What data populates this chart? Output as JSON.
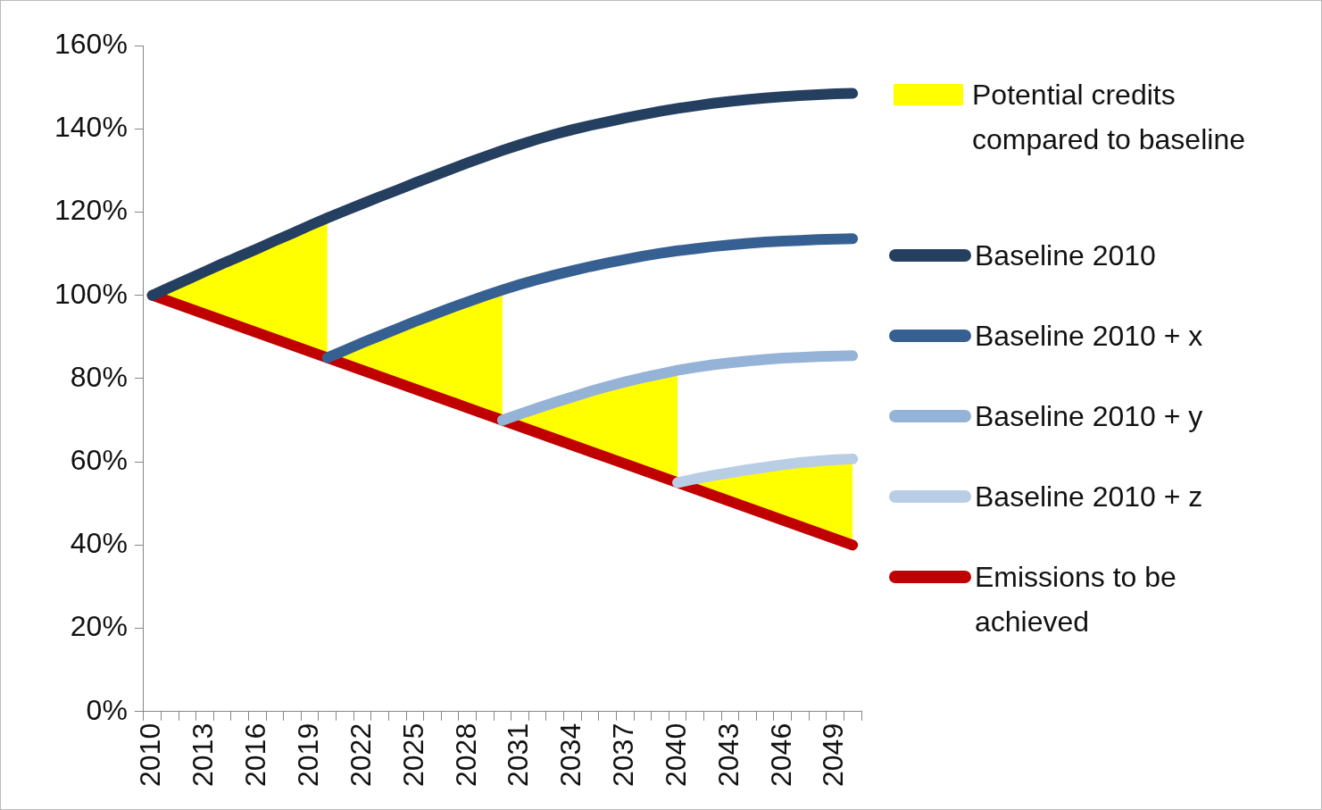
{
  "chart_data": {
    "type": "line",
    "categories": [
      "2010",
      null,
      null,
      "2013",
      null,
      null,
      "2016",
      null,
      null,
      "2019",
      null,
      null,
      "2022",
      null,
      null,
      "2025",
      null,
      null,
      "2028",
      null,
      null,
      "2031",
      null,
      null,
      "2034",
      null,
      null,
      "2037",
      null,
      null,
      "2040",
      null,
      null,
      "2043",
      null,
      null,
      "2046",
      null,
      null,
      "2049",
      null
    ],
    "series": [
      {
        "name": "Potential credits compared to baseline",
        "type": "area",
        "color": "#ffff00",
        "values": [
          100,
          101.9,
          103.8,
          105.7,
          107.6,
          109.4,
          111.2,
          113.1,
          114.9,
          116.8,
          118.6,
          null,
          null,
          null,
          null,
          null,
          null,
          null,
          null,
          null,
          null,
          null,
          null,
          null,
          null,
          null,
          null,
          null,
          null,
          null,
          null,
          null,
          null,
          null,
          null,
          null,
          null,
          null,
          null,
          null,
          null
        ]
      },
      {
        "type": "area",
        "color": "#ffff00",
        "values": [
          null,
          null,
          null,
          null,
          null,
          null,
          null,
          null,
          null,
          null,
          85,
          86.8,
          88.6,
          90.3,
          92,
          93.7,
          95.3,
          96.9,
          98.4,
          99.9,
          101.3,
          null,
          null,
          null,
          null,
          null,
          null,
          null,
          null,
          null,
          null,
          null,
          null,
          null,
          null,
          null,
          null,
          null,
          null,
          null,
          null
        ]
      },
      {
        "type": "area",
        "color": "#ffff00",
        "values": [
          null,
          null,
          null,
          null,
          null,
          null,
          null,
          null,
          null,
          null,
          null,
          null,
          null,
          null,
          null,
          null,
          null,
          null,
          null,
          null,
          70,
          71.5,
          72.9,
          74.3,
          75.6,
          76.9,
          78.1,
          79.2,
          80.2,
          81.1,
          82,
          null,
          null,
          null,
          null,
          null,
          null,
          null,
          null,
          null,
          null
        ]
      },
      {
        "type": "area",
        "color": "#ffff00",
        "values": [
          null,
          null,
          null,
          null,
          null,
          null,
          null,
          null,
          null,
          null,
          null,
          null,
          null,
          null,
          null,
          null,
          null,
          null,
          null,
          null,
          null,
          null,
          null,
          null,
          null,
          null,
          null,
          null,
          null,
          null,
          55,
          55.9,
          56.7,
          57.4,
          58.1,
          58.7,
          59.3,
          59.8,
          60.2,
          60.5,
          60.7
        ]
      },
      {
        "name": "Baseline 2010",
        "color": "#243f60",
        "values": [
          100,
          101.9,
          103.8,
          105.7,
          107.6,
          109.4,
          111.2,
          113.1,
          114.9,
          116.8,
          118.6,
          120.3,
          122,
          123.7,
          125.3,
          127,
          128.6,
          130.2,
          131.8,
          133.3,
          134.8,
          136.2,
          137.5,
          138.7,
          139.8,
          140.8,
          141.7,
          142.6,
          143.4,
          144.2,
          144.9,
          145.5,
          146.1,
          146.6,
          147,
          147.4,
          147.7,
          148,
          148.2,
          148.4,
          148.5
        ]
      },
      {
        "name": "Baseline 2010 + x",
        "color": "#376092",
        "values": [
          null,
          null,
          null,
          null,
          null,
          null,
          null,
          null,
          null,
          null,
          85,
          86.8,
          88.6,
          90.3,
          92,
          93.7,
          95.3,
          96.9,
          98.4,
          99.9,
          101.3,
          102.6,
          103.8,
          104.9,
          105.9,
          106.9,
          107.8,
          108.6,
          109.4,
          110.1,
          110.7,
          111.2,
          111.7,
          112.1,
          112.5,
          112.8,
          113,
          113.2,
          113.4,
          113.5,
          113.6
        ]
      },
      {
        "name": "Baseline 2010 + y",
        "color": "#95b3d7",
        "values": [
          null,
          null,
          null,
          null,
          null,
          null,
          null,
          null,
          null,
          null,
          null,
          null,
          null,
          null,
          null,
          null,
          null,
          null,
          null,
          null,
          70,
          71.5,
          72.9,
          74.3,
          75.6,
          76.9,
          78.1,
          79.2,
          80.2,
          81.1,
          82,
          82.7,
          83.3,
          83.8,
          84.2,
          84.6,
          84.9,
          85.1,
          85.3,
          85.4,
          85.5
        ]
      },
      {
        "name": "Baseline 2010 + z",
        "color": "#b9cde5",
        "values": [
          null,
          null,
          null,
          null,
          null,
          null,
          null,
          null,
          null,
          null,
          null,
          null,
          null,
          null,
          null,
          null,
          null,
          null,
          null,
          null,
          null,
          null,
          null,
          null,
          null,
          null,
          null,
          null,
          null,
          null,
          55,
          55.9,
          56.7,
          57.4,
          58.1,
          58.7,
          59.3,
          59.8,
          60.2,
          60.5,
          60.7
        ]
      },
      {
        "name": "Emissions to be achieved",
        "color": "#c00000",
        "values": [
          100,
          98.5,
          97,
          95.5,
          94,
          92.5,
          91,
          89.5,
          88,
          86.5,
          85,
          83.5,
          82,
          80.5,
          79,
          77.5,
          76,
          74.5,
          73,
          71.5,
          70,
          68.5,
          67,
          65.5,
          64,
          62.5,
          61,
          59.5,
          58,
          56.5,
          55,
          53.5,
          52,
          50.5,
          49,
          47.5,
          46,
          44.5,
          43,
          41.5,
          40
        ]
      }
    ],
    "ylim": [
      0,
      160
    ],
    "yticks": [
      {
        "value": 0,
        "label": "0%"
      },
      {
        "value": 20,
        "label": "20%"
      },
      {
        "value": 40,
        "label": "40%"
      },
      {
        "value": 60,
        "label": "60%"
      },
      {
        "value": 80,
        "label": "80%"
      },
      {
        "value": 100,
        "label": "100%"
      },
      {
        "value": 120,
        "label": "120%"
      },
      {
        "value": 140,
        "label": "140%"
      },
      {
        "value": 160,
        "label": "160%"
      }
    ],
    "grid": false,
    "legend": "right",
    "marker": "none",
    "line_style": "solid"
  }
}
